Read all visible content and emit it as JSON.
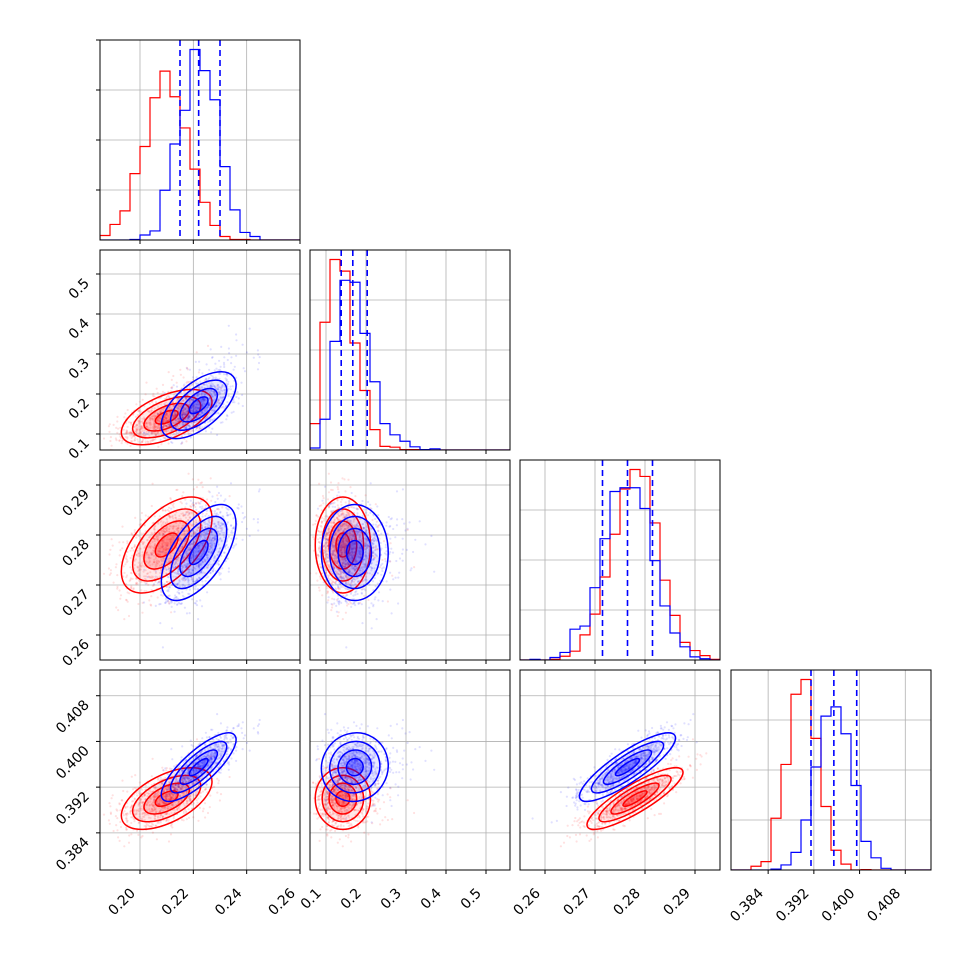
{
  "chart_data": {
    "type": "corner",
    "title": "",
    "series_colors": {
      "red": "#ff0000",
      "blue": "#0000ff"
    },
    "grid": true,
    "parameters": [
      {
        "index": 0,
        "range": [
          0.185,
          0.26
        ],
        "ticks": [
          0.2,
          0.22,
          0.24,
          0.26
        ],
        "tick_labels": [
          "0.20",
          "0.22",
          "0.24",
          "0.26"
        ]
      },
      {
        "index": 1,
        "range": [
          0.06,
          0.56
        ],
        "ticks": [
          0.1,
          0.2,
          0.3,
          0.4,
          0.5
        ],
        "tick_labels": [
          "0.1",
          "0.2",
          "0.3",
          "0.4",
          "0.5"
        ]
      },
      {
        "index": 2,
        "range": [
          0.255,
          0.295
        ],
        "ticks": [
          0.26,
          0.27,
          0.28,
          0.29
        ],
        "tick_labels": [
          "0.26",
          "0.27",
          "0.28",
          "0.29"
        ]
      },
      {
        "index": 3,
        "range": [
          0.3775,
          0.4125
        ],
        "ticks": [
          0.384,
          0.392,
          0.4,
          0.408
        ],
        "tick_labels": [
          "0.384",
          "0.392",
          "0.400",
          "0.408"
        ]
      }
    ],
    "blue_quantiles": [
      [
        0.215,
        0.222,
        0.23
      ],
      [
        0.138,
        0.167,
        0.203
      ],
      [
        0.2715,
        0.2765,
        0.2815
      ],
      [
        0.3915,
        0.3955,
        0.3995
      ]
    ],
    "series": [
      {
        "color": "red",
        "mean": [
          0.21,
          0.138,
          0.278,
          0.39
        ],
        "std": [
          0.0085,
          0.04,
          0.0048,
          0.0027
        ],
        "corr": {
          "0-1": 0.55,
          "0-2": 0.55,
          "0-3": 0.55,
          "1-2": 0.0,
          "1-3": 0.0,
          "2-3": 0.85
        }
      },
      {
        "color": "blue",
        "mean": [
          0.222,
          0.167,
          0.2765,
          0.3955
        ],
        "std": [
          0.007,
          0.04,
          0.0048,
          0.003
        ],
        "corr": {
          "0-1": 0.6,
          "0-2": 0.6,
          "0-3": 0.8,
          "1-2": 0.0,
          "1-3": 0.05,
          "2-3": 0.85
        }
      }
    ]
  }
}
